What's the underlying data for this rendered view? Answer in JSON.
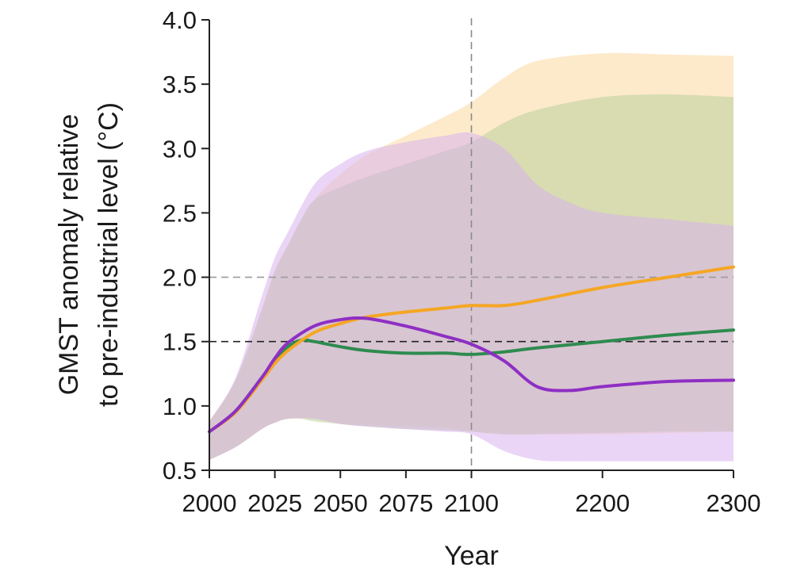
{
  "chart_data": {
    "type": "area",
    "title": "",
    "xlabel": "Year",
    "ylabel_line1": "GMST anomaly relative",
    "ylabel_line2": "to pre-industrial level (°C)",
    "ylim": [
      0.5,
      4.0
    ],
    "yticks": [
      0.5,
      1.0,
      1.5,
      2.0,
      2.5,
      3.0,
      3.5,
      4.0
    ],
    "ytick_labels": [
      "0.5",
      "1.0",
      "1.5",
      "2.0",
      "2.5",
      "3.0",
      "3.5",
      "4.0"
    ],
    "xticks": [
      2000,
      2025,
      2050,
      2075,
      2100,
      2200,
      2300
    ],
    "xtick_labels": [
      "2000",
      "2025",
      "2050",
      "2075",
      "2100",
      "2200",
      "2300"
    ],
    "x_scale_note": "2000–2100 and 2100–2300 occupy equal widths",
    "reference_lines": [
      {
        "axis": "y",
        "value": 2.0,
        "color": "#9a9a9a",
        "style": "dashed"
      },
      {
        "axis": "y",
        "value": 1.5,
        "color": "#222222",
        "style": "dashed"
      },
      {
        "axis": "x",
        "value": 2100,
        "color": "#8a8a8a",
        "style": "dashed"
      }
    ],
    "series": [
      {
        "name": "orange",
        "color": "#f5a623",
        "band_color": "#fbd9a0",
        "x": [
          2000,
          2010,
          2020,
          2025,
          2030,
          2040,
          2050,
          2060,
          2075,
          2090,
          2100,
          2125,
          2150,
          2200,
          2250,
          2300
        ],
        "values": [
          0.8,
          0.95,
          1.2,
          1.33,
          1.43,
          1.57,
          1.64,
          1.69,
          1.73,
          1.76,
          1.78,
          1.78,
          1.82,
          1.92,
          2.0,
          2.08
        ],
        "upper": [
          0.88,
          1.2,
          1.75,
          2.05,
          2.25,
          2.6,
          2.8,
          2.95,
          3.1,
          3.25,
          3.36,
          3.55,
          3.68,
          3.74,
          3.73,
          3.72
        ],
        "lower": [
          0.58,
          0.68,
          0.82,
          0.87,
          0.9,
          0.9,
          0.86,
          0.85,
          0.84,
          0.83,
          0.8,
          0.78,
          0.78,
          0.78,
          0.79,
          0.8
        ]
      },
      {
        "name": "green",
        "color": "#2e8b4f",
        "band_color": "#b9cf9a",
        "x": [
          2000,
          2010,
          2020,
          2025,
          2030,
          2035,
          2040,
          2050,
          2060,
          2075,
          2090,
          2100,
          2125,
          2150,
          2200,
          2250,
          2300
        ],
        "values": [
          0.8,
          0.96,
          1.22,
          1.35,
          1.46,
          1.51,
          1.5,
          1.46,
          1.43,
          1.41,
          1.41,
          1.4,
          1.42,
          1.45,
          1.5,
          1.55,
          1.59
        ],
        "upper": [
          0.88,
          1.2,
          1.75,
          2.05,
          2.25,
          2.45,
          2.6,
          2.7,
          2.78,
          2.88,
          2.98,
          3.05,
          3.2,
          3.3,
          3.4,
          3.42,
          3.4
        ],
        "lower": [
          0.58,
          0.68,
          0.82,
          0.87,
          0.9,
          0.9,
          0.88,
          0.86,
          0.84,
          0.82,
          0.81,
          0.8,
          0.78,
          0.78,
          0.79,
          0.8,
          0.8
        ]
      },
      {
        "name": "purple",
        "color": "#8e2fc4",
        "band_color": "#d9b3ee",
        "x": [
          2000,
          2010,
          2020,
          2025,
          2030,
          2040,
          2050,
          2060,
          2075,
          2090,
          2100,
          2125,
          2150,
          2175,
          2200,
          2250,
          2300
        ],
        "values": [
          0.8,
          0.96,
          1.22,
          1.37,
          1.49,
          1.62,
          1.67,
          1.68,
          1.62,
          1.54,
          1.48,
          1.35,
          1.15,
          1.12,
          1.15,
          1.19,
          1.2
        ],
        "upper": [
          0.88,
          1.22,
          1.85,
          2.15,
          2.35,
          2.72,
          2.88,
          2.98,
          3.05,
          3.1,
          3.12,
          3.0,
          2.72,
          2.58,
          2.5,
          2.45,
          2.4
        ],
        "lower": [
          0.58,
          0.68,
          0.82,
          0.87,
          0.9,
          0.9,
          0.86,
          0.84,
          0.82,
          0.8,
          0.78,
          0.65,
          0.58,
          0.57,
          0.57,
          0.57,
          0.57
        ]
      }
    ]
  }
}
